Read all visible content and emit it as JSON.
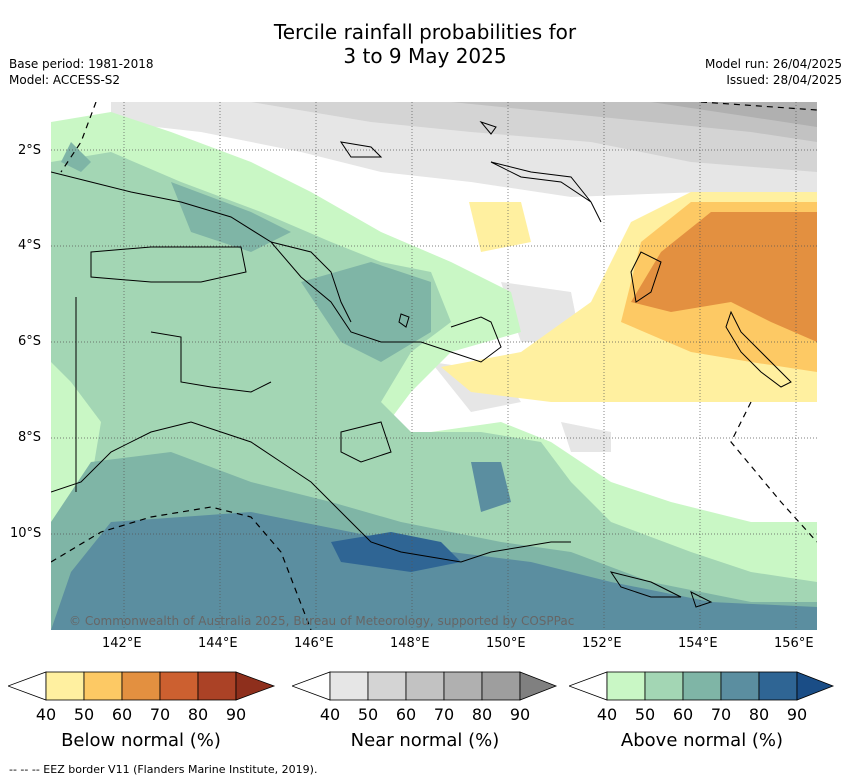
{
  "header": {
    "title_line1": "Tercile rainfall probabilities for",
    "title_line2": "3 to 9 May 2025",
    "base_period": "Base period: 1981-2018",
    "model": "Model: ACCESS-S2",
    "model_run": "Model run: 26/04/2025",
    "issued": "Issued: 28/04/2025"
  },
  "map": {
    "latitude_labels": [
      "2°S",
      "4°S",
      "6°S",
      "8°S",
      "10°S"
    ],
    "longitude_labels": [
      "142°E",
      "144°E",
      "146°E",
      "148°E",
      "150°E",
      "152°E",
      "154°E",
      "156°E"
    ],
    "copyright": "© Commonwealth of Australia 2025, Bureau of Meteorology, supported by COSPPac"
  },
  "legends": [
    {
      "title": "Below normal (%)",
      "ticks": [
        "40",
        "50",
        "60",
        "70",
        "80",
        "90"
      ],
      "colors": [
        "#ffffff",
        "#fff0a0",
        "#fdc964",
        "#e39040",
        "#cc6030",
        "#ab4226",
        "#8e2f1c"
      ]
    },
    {
      "title": "Near normal (%)",
      "ticks": [
        "40",
        "50",
        "60",
        "70",
        "80",
        "90"
      ],
      "colors": [
        "#ffffff",
        "#e6e6e6",
        "#d4d4d4",
        "#c2c2c2",
        "#b0b0b0",
        "#9e9e9e",
        "#808080"
      ]
    },
    {
      "title": "Above normal (%)",
      "ticks": [
        "40",
        "50",
        "60",
        "70",
        "80",
        "90"
      ],
      "colors": [
        "#ffffff",
        "#c9f7c5",
        "#a3d6b4",
        "#7fb5a6",
        "#5b8ea0",
        "#2f6594",
        "#1a4d86"
      ]
    }
  ],
  "footer": {
    "eez_note": "--  --  -- EEZ border V11 (Flanders Marine Institute, 2019)."
  }
}
